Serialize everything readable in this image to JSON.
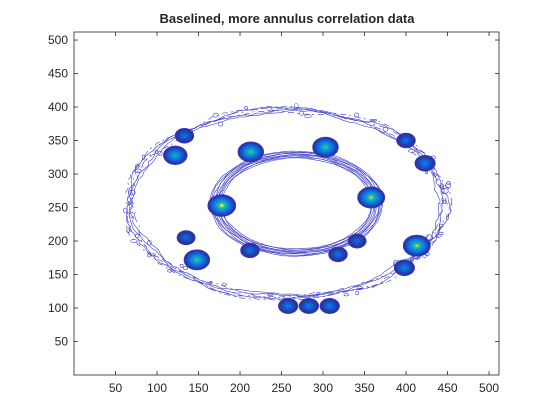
{
  "chart_data": {
    "type": "contour",
    "title": "Baselined, more annulus correlation data",
    "xlabel": "",
    "ylabel": "",
    "xlim": [
      0,
      512
    ],
    "ylim": [
      0,
      512
    ],
    "xticks": [
      50,
      100,
      150,
      200,
      250,
      300,
      350,
      400,
      450,
      500
    ],
    "yticks": [
      50,
      100,
      150,
      200,
      250,
      300,
      350,
      400,
      450,
      500
    ],
    "grid": false,
    "colormap": "parula",
    "outline_color": "#3b3bc8",
    "rings": [
      {
        "name": "outer",
        "center": [
          256,
          256
        ],
        "radii": [
          190,
          140
        ],
        "band_width": 10
      },
      {
        "name": "inner",
        "center": [
          268,
          256
        ],
        "radii": [
          97,
          73
        ],
        "band_width": 14
      }
    ],
    "peaks": [
      {
        "x": 178,
        "y": 253,
        "intensity": 1.0
      },
      {
        "x": 358,
        "y": 265,
        "intensity": 0.95
      },
      {
        "x": 213,
        "y": 333,
        "intensity": 0.85
      },
      {
        "x": 303,
        "y": 340,
        "intensity": 0.85
      },
      {
        "x": 413,
        "y": 193,
        "intensity": 0.95
      },
      {
        "x": 148,
        "y": 172,
        "intensity": 0.85
      },
      {
        "x": 122,
        "y": 328,
        "intensity": 0.7
      },
      {
        "x": 258,
        "y": 103,
        "intensity": 0.4
      },
      {
        "x": 283,
        "y": 103,
        "intensity": 0.4
      },
      {
        "x": 308,
        "y": 103,
        "intensity": 0.4
      },
      {
        "x": 423,
        "y": 316,
        "intensity": 0.45
      },
      {
        "x": 398,
        "y": 160,
        "intensity": 0.45
      },
      {
        "x": 212,
        "y": 186,
        "intensity": 0.35
      },
      {
        "x": 318,
        "y": 180,
        "intensity": 0.35
      },
      {
        "x": 341,
        "y": 200,
        "intensity": 0.3
      },
      {
        "x": 135,
        "y": 205,
        "intensity": 0.3
      },
      {
        "x": 133,
        "y": 357,
        "intensity": 0.35
      },
      {
        "x": 400,
        "y": 350,
        "intensity": 0.35
      }
    ]
  }
}
